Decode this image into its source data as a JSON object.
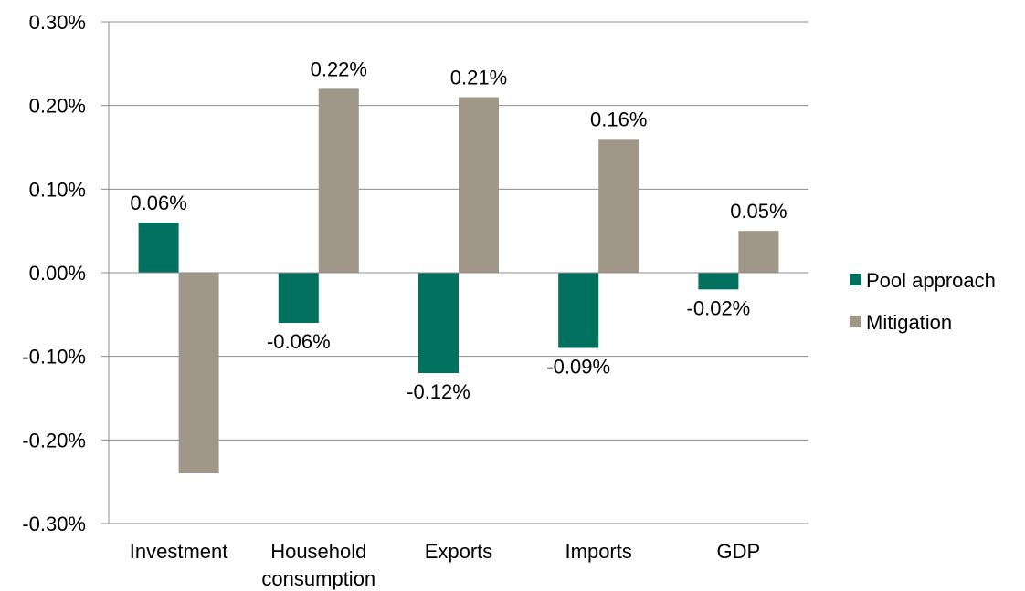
{
  "chart_data": {
    "type": "bar",
    "title": "",
    "xlabel": "",
    "ylabel": "",
    "ylim": [
      -0.3,
      0.3
    ],
    "yticks": [
      0.3,
      0.2,
      0.1,
      0.0,
      -0.1,
      -0.2,
      -0.3
    ],
    "ytick_labels": [
      "0.30%",
      "0.20%",
      "0.10%",
      "0.00%",
      "-0.10%",
      "-0.20%",
      "-0.30%"
    ],
    "grid": true,
    "legend_position": "right",
    "categories": [
      [
        "Investment"
      ],
      [
        "Household",
        "consumption"
      ],
      [
        "Exports"
      ],
      [
        "Imports"
      ],
      [
        "GDP"
      ]
    ],
    "series": [
      {
        "name": "Pool approach",
        "color": "#00705f",
        "values": [
          0.06,
          -0.06,
          -0.12,
          -0.09,
          -0.02
        ],
        "labels": [
          "0.06%",
          "-0.06%",
          "-0.12%",
          "-0.09%",
          "-0.02%"
        ]
      },
      {
        "name": "Mitigation",
        "color": "#a09788",
        "values": [
          -0.24,
          0.22,
          0.21,
          0.16,
          0.05
        ],
        "labels": [
          "",
          "0.22%",
          "0.21%",
          "0.16%",
          "0.05%"
        ]
      }
    ]
  }
}
